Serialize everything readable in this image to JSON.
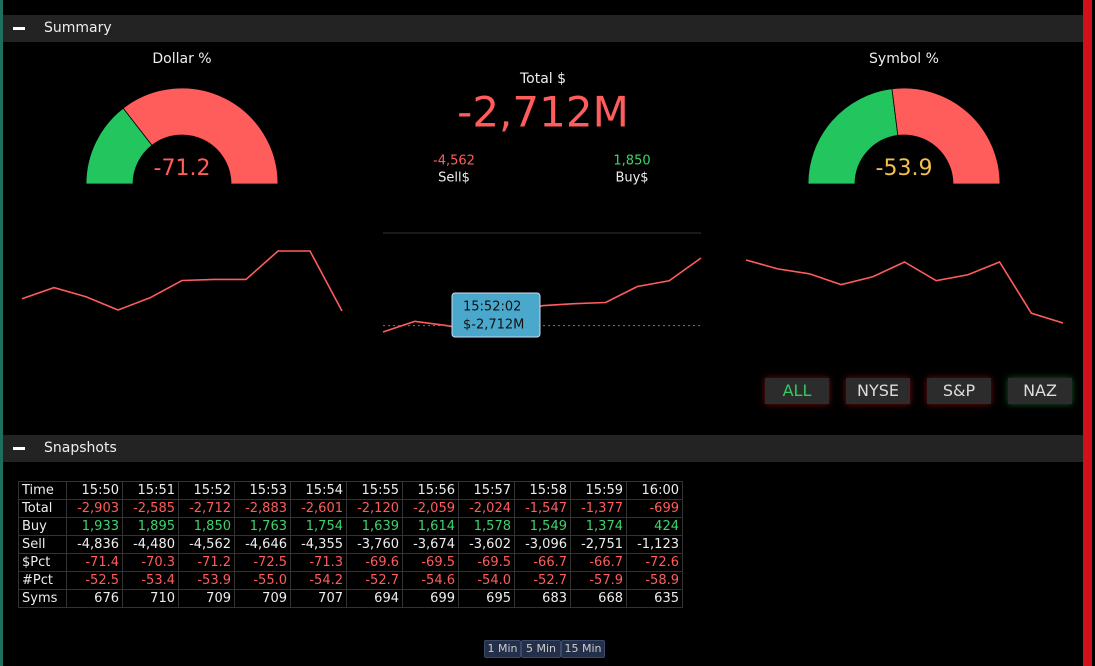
{
  "summary": {
    "title": "Summary",
    "dollar_gauge": {
      "title": "Dollar %",
      "value": "-71.2",
      "green_pct": 29
    },
    "total": {
      "label": "Total $",
      "value": "-2,712M",
      "sell": "-4,562",
      "sell_label": "Sell$",
      "buy": "1,850",
      "buy_label": "Buy$"
    },
    "symbol_gauge": {
      "title": "Symbol %",
      "value": "-53.9",
      "green_pct": 46
    },
    "tooltip": {
      "time": "15:52:02",
      "value": "$-2,712M"
    },
    "buttons": [
      "ALL",
      "NYSE",
      "S&P",
      "NAZ"
    ]
  },
  "snapshots": {
    "title": "Snapshots",
    "table": {
      "rows": [
        [
          "Time",
          "15:50",
          "15:51",
          "15:52",
          "15:53",
          "15:54",
          "15:55",
          "15:56",
          "15:57",
          "15:58",
          "15:59",
          "16:00"
        ],
        [
          "Total",
          "-2,903",
          "-2,585",
          "-2,712",
          "-2,883",
          "-2,601",
          "-2,120",
          "-2,059",
          "-2,024",
          "-1,547",
          "-1,377",
          "-699"
        ],
        [
          "Buy",
          "1,933",
          "1,895",
          "1,850",
          "1,763",
          "1,754",
          "1,639",
          "1,614",
          "1,578",
          "1,549",
          "1,374",
          "424"
        ],
        [
          "Sell",
          "-4,836",
          "-4,480",
          "-4,562",
          "-4,646",
          "-4,355",
          "-3,760",
          "-3,674",
          "-3,602",
          "-3,096",
          "-2,751",
          "-1,123"
        ],
        [
          "$Pct",
          "-71.4",
          "-70.3",
          "-71.2",
          "-72.5",
          "-71.3",
          "-69.6",
          "-69.5",
          "-69.5",
          "-66.7",
          "-66.7",
          "-72.6"
        ],
        [
          "#Pct",
          "-52.5",
          "-53.4",
          "-53.9",
          "-55.0",
          "-54.2",
          "-52.7",
          "-54.6",
          "-54.0",
          "-52.7",
          "-57.9",
          "-58.9"
        ],
        [
          "Syms",
          "676",
          "710",
          "709",
          "709",
          "707",
          "694",
          "699",
          "695",
          "683",
          "668",
          "635"
        ]
      ]
    },
    "intervals": [
      "1 Min",
      "5 Min",
      "15 Min"
    ]
  }
}
